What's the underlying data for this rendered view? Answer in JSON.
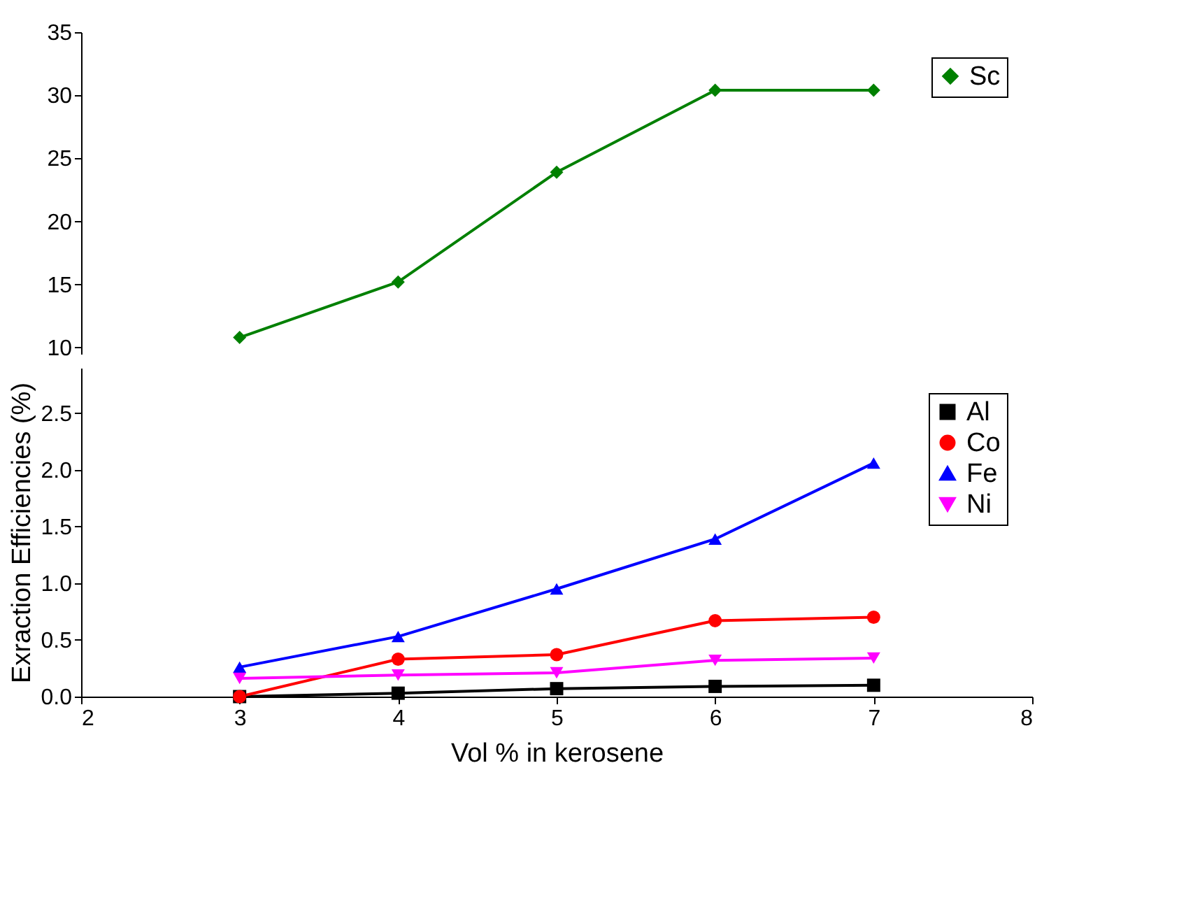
{
  "chart_data": [
    {
      "type": "line",
      "x": [
        3,
        4,
        5,
        6,
        7
      ],
      "xlim": [
        2,
        8
      ],
      "xticks": [
        2,
        3,
        4,
        5,
        6,
        7,
        8
      ],
      "ylim": [
        9.5,
        35
      ],
      "yticks": [
        10,
        15,
        20,
        25,
        30,
        35
      ],
      "tick_labels": "y",
      "grid": false,
      "legend": "top right",
      "series": [
        {
          "name": "Sc",
          "color": "#008000",
          "marker": "diamond",
          "values": [
            10.8,
            15.2,
            23.9,
            30.4,
            30.4
          ]
        }
      ]
    },
    {
      "type": "line",
      "x": [
        3,
        4,
        5,
        6,
        7
      ],
      "xlim": [
        2,
        8
      ],
      "xticks": [
        2,
        3,
        4,
        5,
        6,
        7,
        8
      ],
      "ylim": [
        0,
        2.9
      ],
      "yticks": [
        {
          "value": 0,
          "label": "0.0"
        },
        0.5,
        {
          "value": 1,
          "label": "1.0"
        },
        1.5,
        {
          "value": 2,
          "label": "2.0"
        },
        2.5
      ],
      "grid": false,
      "xlabel": "Vol % in kerosene",
      "legend": "top right",
      "ylabel": "Exraction Efficiencies (%)",
      "series": [
        {
          "name": "Al",
          "color": "#000000",
          "marker": "square",
          "values": [
            0.0,
            0.03,
            0.07,
            0.09,
            0.1
          ]
        },
        {
          "name": "Co",
          "color": "#ff0000",
          "marker": "circle",
          "values": [
            0.0,
            0.33,
            0.37,
            0.67,
            0.7
          ]
        },
        {
          "name": "Fe",
          "color": "#0000ff",
          "marker": "triangle",
          "values": [
            0.26,
            0.53,
            0.95,
            1.39,
            2.06
          ]
        },
        {
          "name": "Ni",
          "color": "#ff00ff",
          "marker": "triangle-down",
          "values": [
            0.16,
            0.19,
            0.21,
            0.32,
            0.34
          ]
        }
      ]
    }
  ]
}
